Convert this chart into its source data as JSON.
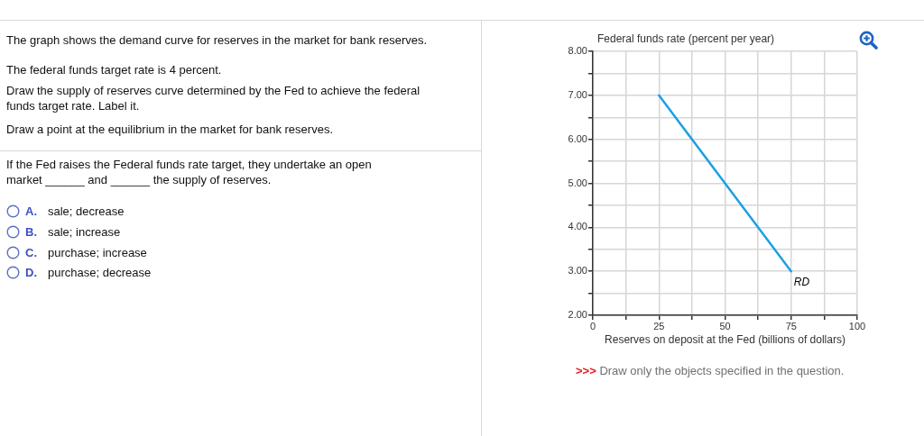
{
  "chart_data": {
    "type": "line",
    "ylabel": "Federal funds rate (percent per year)",
    "xlabel": "Reserves on deposit at the Fed (billions of dollars)",
    "x": [
      25,
      75
    ],
    "series": [
      {
        "name": "RD",
        "color": "#1ba1e2",
        "values": [
          7,
          3
        ]
      }
    ],
    "xlim": [
      0,
      100
    ],
    "ylim": [
      2,
      8
    ],
    "xticks": [
      0,
      {
        "value": 12.5,
        "label": null
      },
      25,
      {
        "value": 37.5,
        "label": null
      },
      50,
      {
        "value": 62.5,
        "label": null
      },
      75,
      {
        "value": 87.5,
        "label": null
      },
      100
    ],
    "yticks": [
      {
        "value": 2,
        "label": "2.00"
      },
      {
        "value": 2.5,
        "label": null
      },
      {
        "value": 3,
        "label": "3.00"
      },
      {
        "value": 3.5,
        "label": null
      },
      {
        "value": 4,
        "label": "4.00"
      },
      {
        "value": 4.5,
        "label": null
      },
      {
        "value": 5,
        "label": "5.00"
      },
      {
        "value": 5.5,
        "label": null
      },
      {
        "value": 6,
        "label": "6.00"
      },
      {
        "value": 6.5,
        "label": null
      },
      {
        "value": 7,
        "label": "7.00"
      },
      {
        "value": 7.5,
        "label": null
      },
      {
        "value": 8,
        "label": "8.00"
      }
    ],
    "grid": true,
    "annotations": [
      "The graph shows the demand curve for reserves in the market for bank reserves.",
      "The federal funds target rate is 4 percent.",
      "Draw the supply of reserves curve determined by the Fed to achieve the federal funds target rate. Label it.",
      "Draw a point at the equilibrium in the market for bank reserves.",
      "If the Fed raises the Federal funds rate target, they undertake an open market ______ and ______ the supply of reserves.",
      "A. sale; decrease",
      "B. sale; increase",
      "C. purchase; increase",
      "D. purchase; decrease",
      ">>> Draw only the objects specified in the question."
    ]
  }
}
